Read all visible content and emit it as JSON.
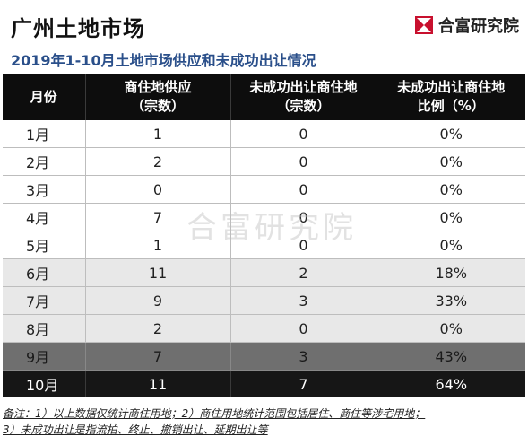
{
  "header": {
    "title": "广州土地市场",
    "brand_name": "合富研究院",
    "brand_logo_icon": "hopefluent-logo-icon",
    "brand_color": "#c8102e"
  },
  "subtitle": "2019年1-10月土地市场供应和未成功出让情况",
  "table": {
    "columns": [
      {
        "line1": "月份",
        "line2": ""
      },
      {
        "line1": "商住地供应",
        "line2": "（宗数）"
      },
      {
        "line1": "未成功出让商住地",
        "line2": "（宗数）"
      },
      {
        "line1": "未成功出让商住地",
        "line2": "比例（%）"
      }
    ],
    "rows": [
      {
        "month": "1月",
        "supply": "1",
        "unsold": "0",
        "ratio": "0%"
      },
      {
        "month": "2月",
        "supply": "2",
        "unsold": "0",
        "ratio": "0%"
      },
      {
        "month": "3月",
        "supply": "0",
        "unsold": "0",
        "ratio": "0%"
      },
      {
        "month": "4月",
        "supply": "7",
        "unsold": "0",
        "ratio": "0%"
      },
      {
        "month": "5月",
        "supply": "1",
        "unsold": "0",
        "ratio": "0%"
      },
      {
        "month": "6月",
        "supply": "11",
        "unsold": "2",
        "ratio": "18%"
      },
      {
        "month": "7月",
        "supply": "9",
        "unsold": "3",
        "ratio": "33%"
      },
      {
        "month": "8月",
        "supply": "2",
        "unsold": "0",
        "ratio": "0%"
      },
      {
        "month": "9月",
        "supply": "7",
        "unsold": "3",
        "ratio": "43%"
      },
      {
        "month": "10月",
        "supply": "11",
        "unsold": "7",
        "ratio": "64%"
      }
    ]
  },
  "watermark": "合富研究院",
  "footnote": {
    "line1": "备注：1）以上数据仅统计商住用地；2）商住用地统计范围包括居住、商住等涉宅用地；",
    "line2": "3）未成功出让是指流拍、终止、撤销出让、延期出让等"
  },
  "colors": {
    "header_bg": "#0d0d0d",
    "subtitle": "#2a4f8a",
    "row_mid": "#e8e8e8",
    "row_dark": "#6f6f6f",
    "row_black": "#161616"
  }
}
